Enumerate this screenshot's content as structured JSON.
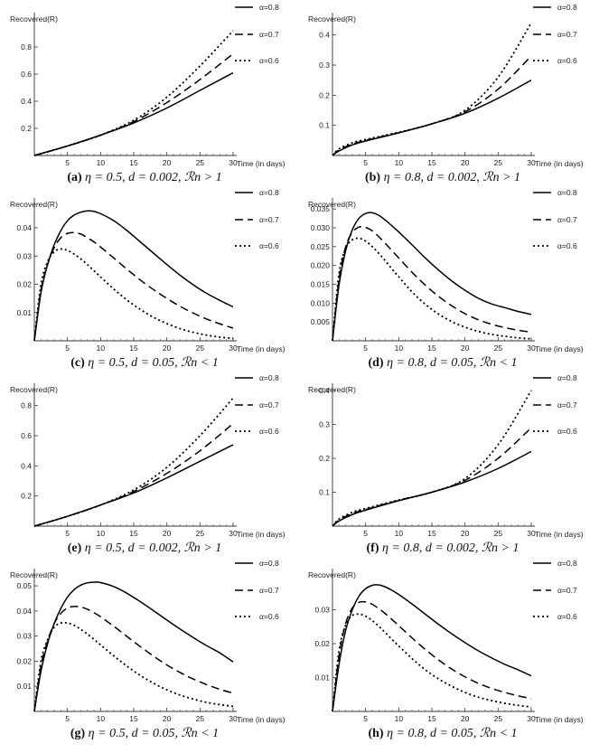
{
  "chart_data": [
    {
      "id": "a",
      "type": "line",
      "caption": {
        "label": "(a)",
        "text": "η = 0.5, d = 0.002, ℛn > 1"
      },
      "ylabel": "Recovered(R)",
      "xlabel": "Time (in days)",
      "xlim": [
        0,
        30
      ],
      "ylim": [
        0,
        1.0
      ],
      "xticks": [
        5,
        10,
        15,
        20,
        25,
        30
      ],
      "yticks": [
        0.2,
        0.4,
        0.6,
        0.8
      ],
      "ytick_labels": [
        "0.2",
        "0.4",
        "0.6",
        "0.8"
      ],
      "x": [
        0,
        5,
        10,
        15,
        20,
        25,
        30
      ],
      "series": [
        {
          "name": "α=0.8",
          "style": "solid",
          "values": [
            0,
            0.07,
            0.15,
            0.24,
            0.35,
            0.48,
            0.61
          ]
        },
        {
          "name": "α=0.7",
          "style": "dashed",
          "values": [
            0,
            0.07,
            0.15,
            0.25,
            0.39,
            0.56,
            0.75
          ]
        },
        {
          "name": "α=0.6",
          "style": "dotted",
          "values": [
            0,
            0.07,
            0.15,
            0.26,
            0.43,
            0.66,
            0.92
          ]
        }
      ]
    },
    {
      "id": "b",
      "type": "line",
      "caption": {
        "label": "(b)",
        "text": "η = 0.8, d = 0.002, ℛn > 1"
      },
      "ylabel": "Recovered(R)",
      "xlabel": "Time (in days)",
      "xlim": [
        0,
        30
      ],
      "ylim": [
        0,
        0.45
      ],
      "xticks": [
        5,
        10,
        15,
        20,
        25,
        30
      ],
      "yticks": [
        0.1,
        0.2,
        0.3,
        0.4
      ],
      "ytick_labels": [
        "0.1",
        "0.2",
        "0.3",
        "0.4"
      ],
      "x": [
        0,
        1,
        3,
        5,
        10,
        15,
        20,
        25,
        30
      ],
      "series": [
        {
          "name": "α=0.8",
          "style": "solid",
          "values": [
            0,
            0.015,
            0.035,
            0.048,
            0.075,
            0.105,
            0.14,
            0.19,
            0.25
          ]
        },
        {
          "name": "α=0.7",
          "style": "dashed",
          "values": [
            0,
            0.018,
            0.038,
            0.05,
            0.076,
            0.105,
            0.145,
            0.22,
            0.33
          ]
        },
        {
          "name": "α=0.6",
          "style": "dotted",
          "values": [
            0,
            0.022,
            0.042,
            0.053,
            0.077,
            0.105,
            0.15,
            0.26,
            0.44
          ]
        }
      ]
    },
    {
      "id": "c",
      "type": "line",
      "caption": {
        "label": "(c)",
        "text": "η = 0.5, d = 0.05, ℛn < 1"
      },
      "ylabel": "Recovered(R)",
      "xlabel": "Time (in days)",
      "xlim": [
        0,
        30
      ],
      "ylim": [
        0,
        0.048
      ],
      "xticks": [
        5,
        10,
        15,
        20,
        25,
        30
      ],
      "yticks": [
        0.01,
        0.02,
        0.03,
        0.04
      ],
      "ytick_labels": [
        "0.01",
        "0.02",
        "0.03",
        "0.04"
      ],
      "x": [
        0,
        1,
        2,
        3,
        4,
        5,
        6,
        7,
        8,
        9,
        10,
        12,
        14,
        16,
        18,
        20,
        22,
        24,
        26,
        28,
        30
      ],
      "series": [
        {
          "name": "α=0.8",
          "style": "solid",
          "values": [
            0,
            0.017,
            0.027,
            0.034,
            0.039,
            0.0425,
            0.0445,
            0.0455,
            0.046,
            0.0458,
            0.045,
            0.0425,
            0.039,
            0.035,
            0.031,
            0.027,
            0.0232,
            0.0198,
            0.0168,
            0.0143,
            0.012
          ]
        },
        {
          "name": "α=0.7",
          "style": "dashed",
          "values": [
            0,
            0.018,
            0.027,
            0.033,
            0.0365,
            0.038,
            0.0383,
            0.0378,
            0.0365,
            0.035,
            0.0332,
            0.0293,
            0.0253,
            0.0215,
            0.0181,
            0.015,
            0.0122,
            0.0098,
            0.0077,
            0.006,
            0.0045
          ]
        },
        {
          "name": "α=0.6",
          "style": "dotted",
          "values": [
            0,
            0.02,
            0.028,
            0.0315,
            0.0325,
            0.032,
            0.0307,
            0.029,
            0.027,
            0.0248,
            0.0226,
            0.0183,
            0.0144,
            0.0111,
            0.0083,
            0.0061,
            0.0043,
            0.003,
            0.002,
            0.0013,
            0.0008
          ]
        }
      ]
    },
    {
      "id": "d",
      "type": "line",
      "caption": {
        "label": "(d)",
        "text": "η = 0.8, d = 0.05, ℛn < 1"
      },
      "ylabel": "Recovered(R)",
      "xlabel": "Time (in days)",
      "xlim": [
        0,
        30
      ],
      "ylim": [
        0,
        0.036
      ],
      "xticks": [
        5,
        10,
        15,
        20,
        25,
        30
      ],
      "yticks": [
        0.005,
        0.01,
        0.015,
        0.02,
        0.025,
        0.03,
        0.035
      ],
      "ytick_labels": [
        "0.005",
        "0.010",
        "0.015",
        "0.020",
        "0.025",
        "0.030",
        "0.035"
      ],
      "x": [
        0,
        1,
        2,
        3,
        4,
        5,
        6,
        7,
        8,
        9,
        10,
        12,
        14,
        16,
        18,
        20,
        22,
        24,
        26,
        28,
        30
      ],
      "series": [
        {
          "name": "α=0.8",
          "style": "solid",
          "values": [
            0,
            0.015,
            0.024,
            0.0295,
            0.0325,
            0.0338,
            0.034,
            0.0333,
            0.032,
            0.0305,
            0.0289,
            0.0255,
            0.022,
            0.0188,
            0.0159,
            0.0134,
            0.0113,
            0.0098,
            0.0088,
            0.0078,
            0.007
          ]
        },
        {
          "name": "α=0.7",
          "style": "dashed",
          "values": [
            0,
            0.0165,
            0.025,
            0.0288,
            0.0302,
            0.0301,
            0.0292,
            0.0276,
            0.0258,
            0.0239,
            0.022,
            0.0182,
            0.0148,
            0.0118,
            0.0093,
            0.0072,
            0.0056,
            0.0044,
            0.0035,
            0.0028,
            0.0023
          ]
        },
        {
          "name": "α=0.6",
          "style": "dotted",
          "values": [
            0,
            0.018,
            0.0245,
            0.0268,
            0.0272,
            0.0265,
            0.025,
            0.0232,
            0.0212,
            0.019,
            0.017,
            0.013,
            0.0097,
            0.0071,
            0.0051,
            0.0036,
            0.0025,
            0.0017,
            0.0012,
            0.0008,
            0.0005
          ]
        }
      ]
    },
    {
      "id": "e",
      "type": "line",
      "caption": {
        "label": "(e)",
        "text": "η = 0.5, d = 0.002, ℛn > 1"
      },
      "ylabel": "Recovered(R)",
      "xlabel": "Time (in days)",
      "xlim": [
        0,
        30
      ],
      "ylim": [
        0,
        0.9
      ],
      "xticks": [
        5,
        10,
        15,
        20,
        25,
        30
      ],
      "yticks": [
        0.2,
        0.4,
        0.6,
        0.8
      ],
      "ytick_labels": [
        "0.2",
        "0.4",
        "0.6",
        "0.8"
      ],
      "x": [
        0,
        5,
        10,
        15,
        20,
        25,
        30
      ],
      "series": [
        {
          "name": "α=0.8",
          "style": "solid",
          "values": [
            0,
            0.065,
            0.14,
            0.22,
            0.32,
            0.43,
            0.54
          ]
        },
        {
          "name": "α=0.7",
          "style": "dashed",
          "values": [
            0,
            0.065,
            0.14,
            0.23,
            0.35,
            0.5,
            0.68
          ]
        },
        {
          "name": "α=0.6",
          "style": "dotted",
          "values": [
            0,
            0.065,
            0.14,
            0.24,
            0.39,
            0.6,
            0.85
          ]
        }
      ]
    },
    {
      "id": "f",
      "type": "line",
      "caption": {
        "label": "(f)",
        "text": "η = 0.8, d = 0.002, ℛn > 1"
      },
      "ylabel": "Recovered(R)",
      "xlabel": "Time (in days)",
      "xlim": [
        0,
        30
      ],
      "ylim": [
        0,
        0.4
      ],
      "xticks": [
        5,
        10,
        15,
        20,
        25,
        30
      ],
      "yticks": [
        0.1,
        0.2,
        0.3,
        0.4
      ],
      "ytick_labels": [
        "0.1",
        "0.2",
        "0.3",
        "0.4"
      ],
      "x": [
        0,
        1,
        3,
        5,
        10,
        15,
        20,
        25,
        30
      ],
      "series": [
        {
          "name": "α=0.8",
          "style": "solid",
          "values": [
            0,
            0.015,
            0.034,
            0.047,
            0.075,
            0.1,
            0.13,
            0.17,
            0.22
          ]
        },
        {
          "name": "α=0.7",
          "style": "dashed",
          "values": [
            0,
            0.018,
            0.037,
            0.049,
            0.076,
            0.1,
            0.135,
            0.2,
            0.29
          ]
        },
        {
          "name": "α=0.6",
          "style": "dotted",
          "values": [
            0,
            0.021,
            0.041,
            0.052,
            0.077,
            0.1,
            0.14,
            0.24,
            0.4
          ]
        }
      ]
    },
    {
      "id": "g",
      "type": "line",
      "caption": {
        "label": "(g)",
        "text": "η = 0.5, d = 0.05, ℛn < 1"
      },
      "ylabel": "Recovered(R)",
      "xlabel": "Time (in days)",
      "xlim": [
        0,
        30
      ],
      "ylim": [
        0,
        0.054
      ],
      "xticks": [
        5,
        10,
        15,
        20,
        25,
        30
      ],
      "yticks": [
        0.01,
        0.02,
        0.03,
        0.04,
        0.05
      ],
      "ytick_labels": [
        "0.01",
        "0.02",
        "0.03",
        "0.04",
        "0.05"
      ],
      "x": [
        0,
        1,
        2,
        3,
        4,
        5,
        6,
        7,
        8,
        9,
        10,
        12,
        14,
        16,
        18,
        20,
        22,
        24,
        26,
        28,
        30
      ],
      "series": [
        {
          "name": "α=0.8",
          "style": "solid",
          "values": [
            0,
            0.016,
            0.027,
            0.035,
            0.041,
            0.0455,
            0.0485,
            0.0503,
            0.0512,
            0.0515,
            0.0513,
            0.0497,
            0.047,
            0.0437,
            0.0401,
            0.0364,
            0.0328,
            0.0294,
            0.0262,
            0.0233,
            0.0197
          ]
        },
        {
          "name": "α=0.7",
          "style": "dashed",
          "values": [
            0,
            0.018,
            0.028,
            0.035,
            0.039,
            0.0412,
            0.0418,
            0.0416,
            0.0407,
            0.0393,
            0.0377,
            0.0339,
            0.0298,
            0.0258,
            0.022,
            0.0185,
            0.0155,
            0.0129,
            0.0107,
            0.0088,
            0.0073
          ]
        },
        {
          "name": "α=0.6",
          "style": "dotted",
          "values": [
            0,
            0.02,
            0.0285,
            0.0335,
            0.0352,
            0.0352,
            0.0343,
            0.0327,
            0.0308,
            0.0287,
            0.0265,
            0.0221,
            0.018,
            0.0143,
            0.0112,
            0.0086,
            0.0065,
            0.0049,
            0.0036,
            0.0027,
            0.002
          ]
        }
      ]
    },
    {
      "id": "h",
      "type": "line",
      "caption": {
        "label": "(h)",
        "text": "η = 0.8, d = 0.05, ℛn < 1"
      },
      "ylabel": "Recovered(R)",
      "xlabel": "Time (in days)",
      "xlim": [
        0,
        30
      ],
      "ylim": [
        0,
        0.04
      ],
      "xticks": [
        5,
        10,
        15,
        20,
        25,
        30
      ],
      "yticks": [
        0.01,
        0.02,
        0.03
      ],
      "ytick_labels": [
        "0.01",
        "0.02",
        "0.03"
      ],
      "x": [
        0,
        1,
        2,
        3,
        4,
        5,
        6,
        7,
        8,
        9,
        10,
        12,
        14,
        16,
        18,
        20,
        22,
        24,
        26,
        28,
        30
      ],
      "series": [
        {
          "name": "α=0.8",
          "style": "solid",
          "values": [
            0,
            0.014,
            0.024,
            0.03,
            0.034,
            0.0362,
            0.0372,
            0.0373,
            0.0367,
            0.0357,
            0.0345,
            0.0317,
            0.0287,
            0.0257,
            0.0229,
            0.0203,
            0.0179,
            0.0158,
            0.0139,
            0.0123,
            0.0105
          ]
        },
        {
          "name": "α=0.7",
          "style": "dashed",
          "values": [
            0,
            0.0165,
            0.026,
            0.0305,
            0.0322,
            0.0323,
            0.0316,
            0.0303,
            0.0288,
            0.0271,
            0.0253,
            0.0217,
            0.0183,
            0.0152,
            0.0125,
            0.0102,
            0.0083,
            0.0068,
            0.0056,
            0.0046,
            0.0038
          ]
        },
        {
          "name": "α=0.6",
          "style": "dotted",
          "values": [
            0,
            0.018,
            0.0255,
            0.0283,
            0.0287,
            0.0281,
            0.0268,
            0.0251,
            0.0232,
            0.0212,
            0.0193,
            0.0156,
            0.0123,
            0.0096,
            0.0074,
            0.0056,
            0.0042,
            0.0032,
            0.0024,
            0.0018,
            0.0013
          ]
        }
      ]
    }
  ]
}
